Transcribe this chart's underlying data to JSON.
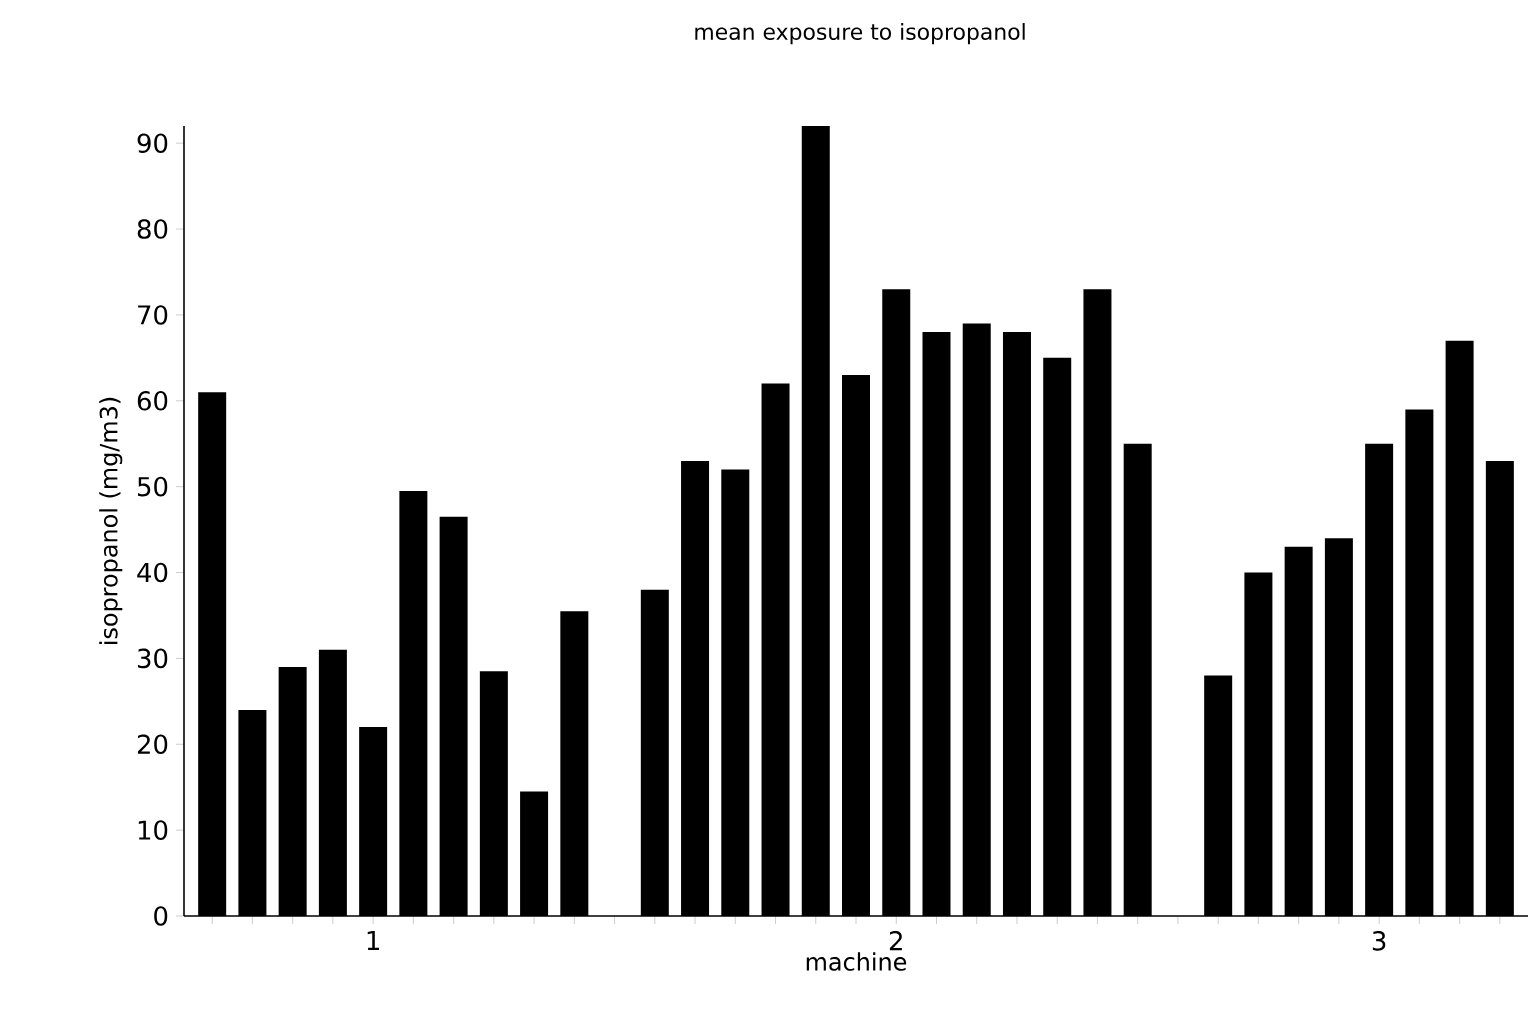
{
  "chart_data": {
    "type": "bar",
    "title": "mean exposure to isopropanol",
    "xlabel": "machine",
    "ylabel": "isopropanol (mg/m3)",
    "categories": [
      null,
      null,
      null,
      null,
      "1",
      null,
      null,
      null,
      null,
      null,
      null,
      null,
      null,
      null,
      null,
      null,
      null,
      "2",
      null,
      null,
      null,
      null,
      null,
      null,
      null,
      null,
      null,
      null,
      null,
      "3",
      null,
      null,
      null
    ],
    "values": [
      61,
      24,
      29,
      31,
      22,
      49.5,
      46.5,
      28.5,
      14.5,
      35.5,
      null,
      38,
      53,
      52,
      62,
      92,
      63,
      73,
      68,
      69,
      68,
      65,
      73,
      55,
      null,
      28,
      40,
      43,
      44,
      55,
      59,
      67,
      53
    ],
    "color": "#000000",
    "ylim": [
      0,
      92
    ],
    "yticks": [
      0,
      10,
      20,
      30,
      40,
      50,
      60,
      70,
      80,
      90
    ],
    "grid": false
  }
}
